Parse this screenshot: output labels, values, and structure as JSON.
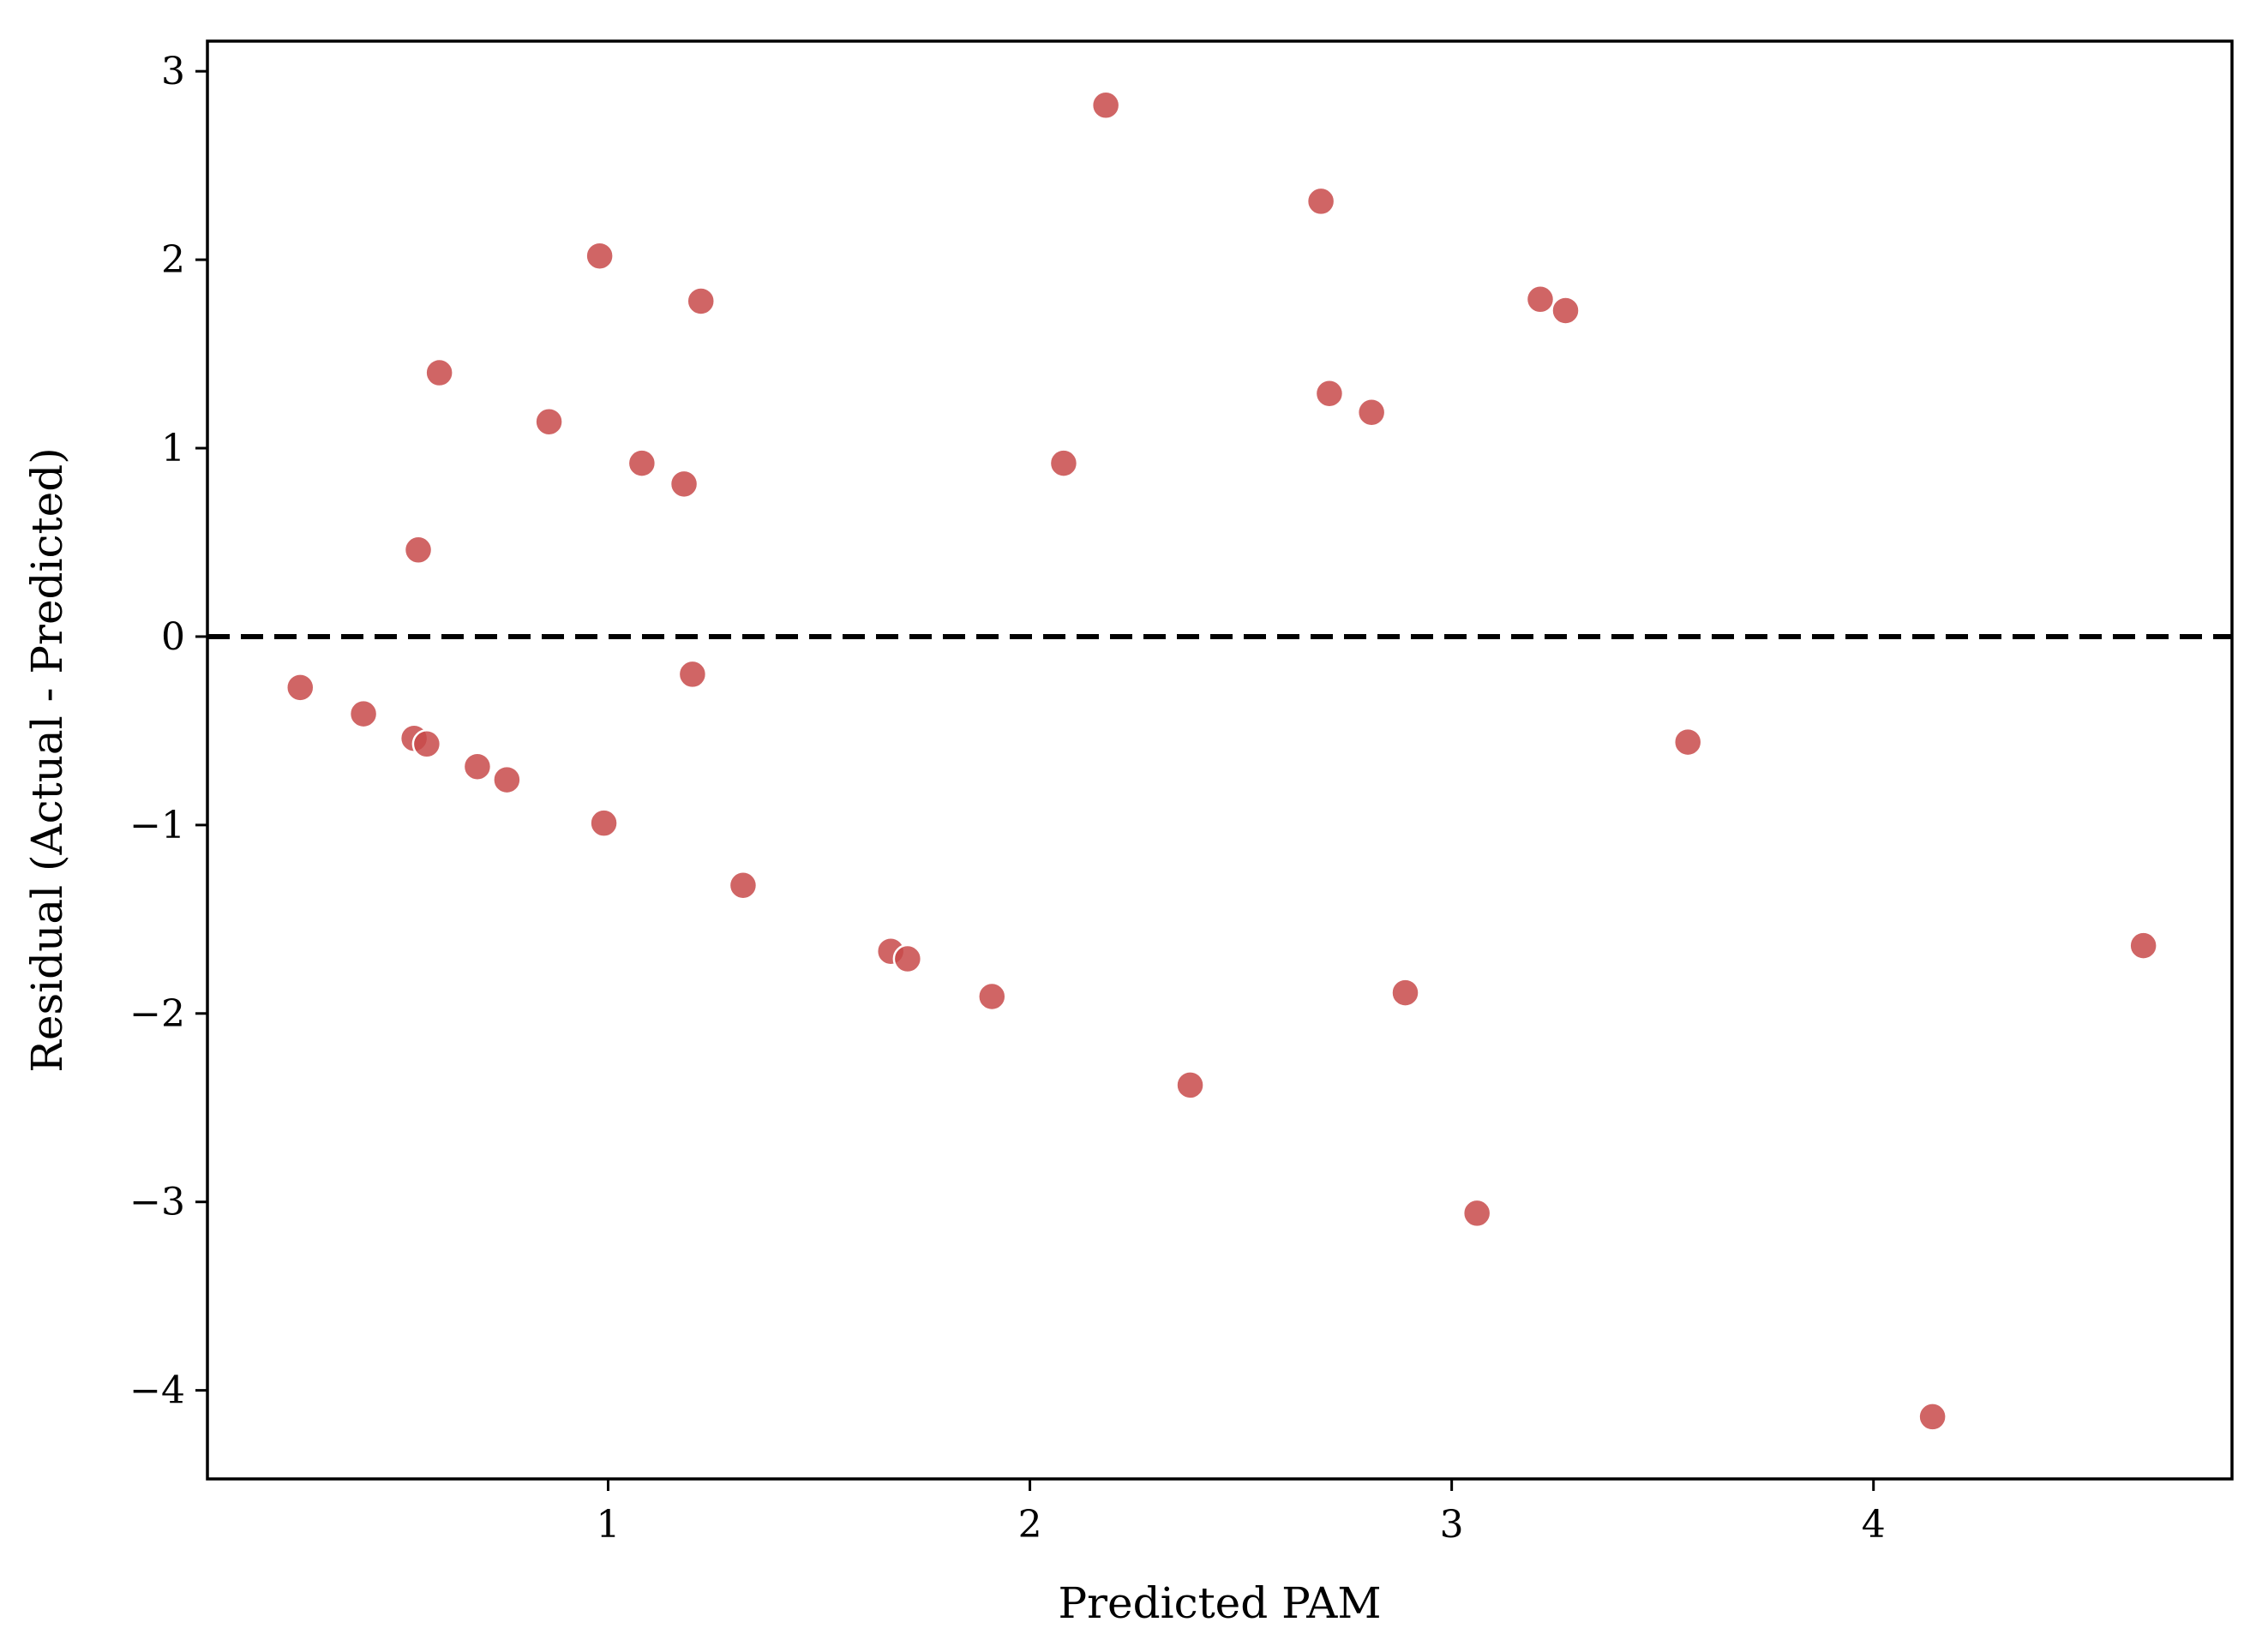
{
  "chart_data": {
    "type": "scatter",
    "xlabel": "Predicted PAM",
    "ylabel": "Residual (Actual - Predicted)",
    "xlim": [
      0.05,
      4.85
    ],
    "ylim": [
      -4.47,
      3.16
    ],
    "xticks": [
      1,
      2,
      3,
      4
    ],
    "yticks": [
      3,
      2,
      1,
      0,
      -1,
      -2,
      -3,
      -4
    ],
    "xtick_labels": [
      "1",
      "2",
      "3",
      "4"
    ],
    "ytick_labels": [
      "3",
      "2",
      "1",
      "0",
      "−1",
      "−2",
      "−3",
      "−4"
    ],
    "grid": false,
    "reference_line": {
      "y": 0,
      "style": "dashed",
      "color": "#000000"
    },
    "point_color": "#c84a4a",
    "points": [
      {
        "x": 0.27,
        "y": -0.27
      },
      {
        "x": 0.42,
        "y": -0.41
      },
      {
        "x": 0.54,
        "y": -0.54
      },
      {
        "x": 0.55,
        "y": 0.46
      },
      {
        "x": 0.57,
        "y": -0.57
      },
      {
        "x": 0.6,
        "y": 1.4
      },
      {
        "x": 0.69,
        "y": -0.69
      },
      {
        "x": 0.76,
        "y": -0.76
      },
      {
        "x": 0.86,
        "y": 1.14
      },
      {
        "x": 0.98,
        "y": 2.02
      },
      {
        "x": 0.99,
        "y": -0.99
      },
      {
        "x": 1.08,
        "y": 0.92
      },
      {
        "x": 1.18,
        "y": 0.81
      },
      {
        "x": 1.2,
        "y": -0.2
      },
      {
        "x": 1.22,
        "y": 1.78
      },
      {
        "x": 1.32,
        "y": -1.32
      },
      {
        "x": 1.67,
        "y": -1.67
      },
      {
        "x": 1.71,
        "y": -1.71
      },
      {
        "x": 1.91,
        "y": -1.91
      },
      {
        "x": 2.08,
        "y": 0.92
      },
      {
        "x": 2.18,
        "y": 2.82
      },
      {
        "x": 2.38,
        "y": -2.38
      },
      {
        "x": 2.69,
        "y": 2.31
      },
      {
        "x": 2.71,
        "y": 1.29
      },
      {
        "x": 2.81,
        "y": 1.19
      },
      {
        "x": 2.89,
        "y": -1.89
      },
      {
        "x": 3.06,
        "y": -3.06
      },
      {
        "x": 3.21,
        "y": 1.79
      },
      {
        "x": 3.27,
        "y": 1.73
      },
      {
        "x": 3.56,
        "y": -0.56
      },
      {
        "x": 4.14,
        "y": -4.14
      },
      {
        "x": 4.64,
        "y": -1.64
      }
    ]
  }
}
